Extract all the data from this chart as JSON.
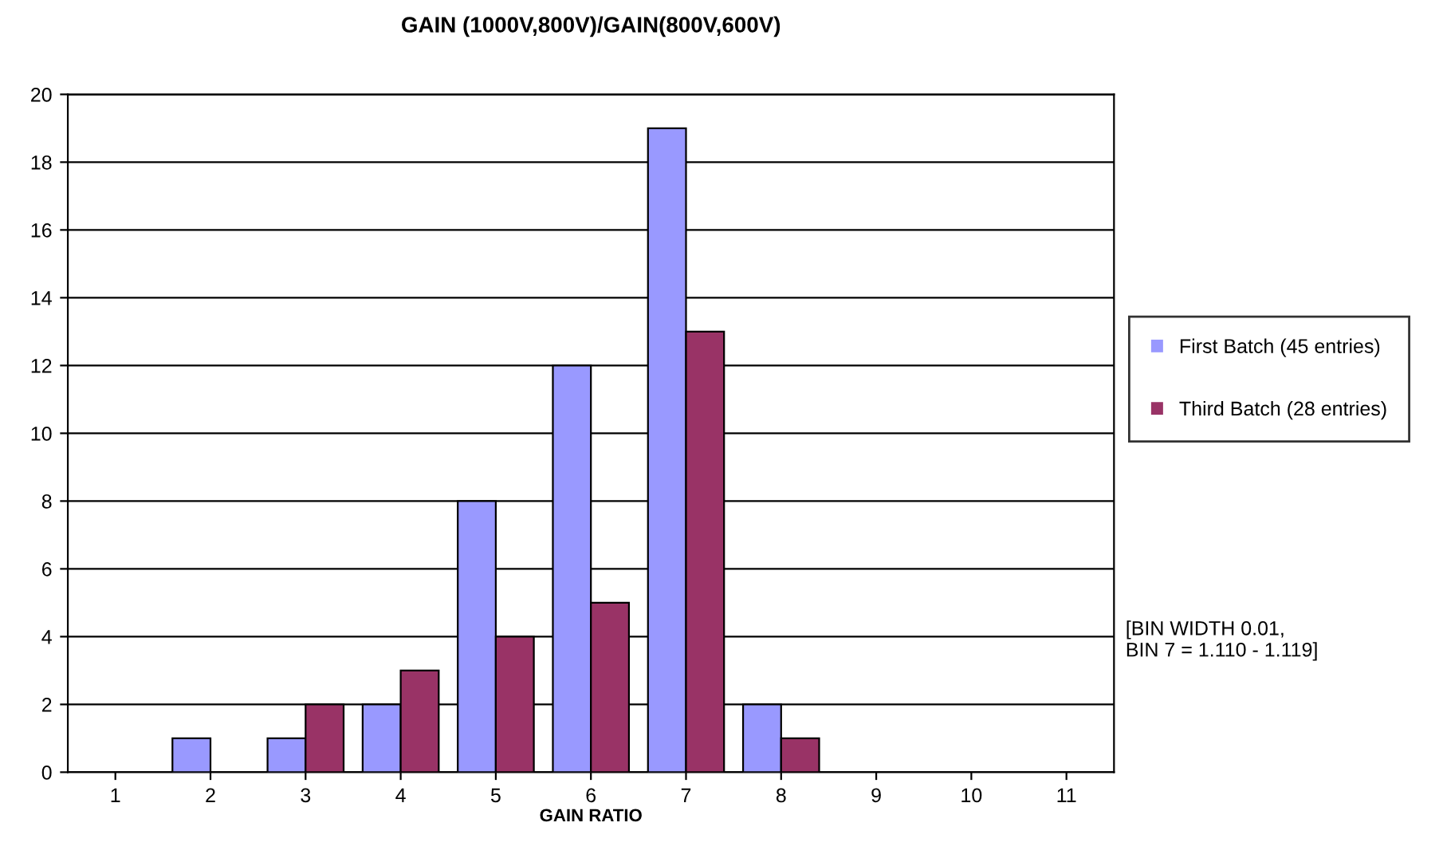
{
  "chart_data": {
    "type": "bar",
    "title": "GAIN (1000V,800V)/GAIN(800V,600V)",
    "xlabel": "GAIN RATIO",
    "categories": [
      "1",
      "2",
      "3",
      "4",
      "5",
      "6",
      "7",
      "8",
      "9",
      "10",
      "11"
    ],
    "series": [
      {
        "name": "First Batch (45 entries)",
        "color": "#9999ff",
        "values": [
          0,
          1,
          1,
          2,
          8,
          12,
          19,
          2,
          0,
          0,
          0
        ]
      },
      {
        "name": "Third Batch (28 entries)",
        "color": "#993366",
        "values": [
          0,
          0,
          2,
          3,
          4,
          5,
          13,
          1,
          0,
          0,
          0
        ]
      }
    ],
    "ylim": [
      0,
      20
    ],
    "yticks": [
      0,
      2,
      4,
      6,
      8,
      10,
      12,
      14,
      16,
      18,
      20
    ],
    "grid": "y",
    "legend": "right",
    "annotations": [
      "[BIN WIDTH 0.01,\nBIN 7 = 1.110 - 1.119]"
    ]
  }
}
